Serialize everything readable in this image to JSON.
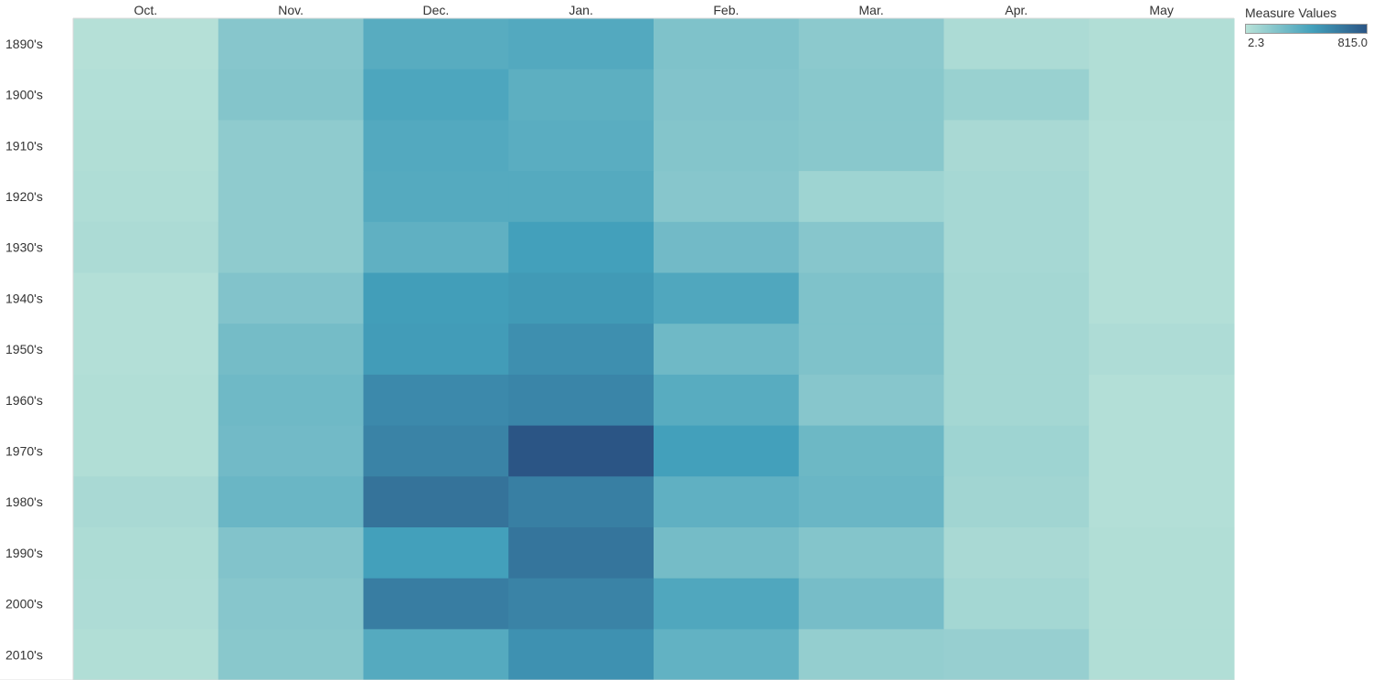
{
  "chart_data": {
    "type": "heatmap",
    "columns": [
      "Oct.",
      "Nov.",
      "Dec.",
      "Jan.",
      "Feb.",
      "Mar.",
      "Apr.",
      "May"
    ],
    "rows": [
      "1890's",
      "1900's",
      "1910's",
      "1920's",
      "1930's",
      "1940's",
      "1950's",
      "1960's",
      "1970's",
      "1980's",
      "1990's",
      "2000's",
      "2010's"
    ],
    "values": [
      [
        15,
        190,
        370,
        390,
        220,
        170,
        50,
        30
      ],
      [
        25,
        200,
        410,
        350,
        210,
        180,
        120,
        30
      ],
      [
        30,
        160,
        390,
        360,
        200,
        180,
        60,
        20
      ],
      [
        35,
        160,
        380,
        380,
        190,
        100,
        70,
        20
      ],
      [
        50,
        160,
        340,
        450,
        270,
        190,
        70,
        20
      ],
      [
        20,
        210,
        460,
        480,
        400,
        220,
        80,
        20
      ],
      [
        20,
        260,
        470,
        530,
        280,
        220,
        80,
        40
      ],
      [
        30,
        280,
        560,
        580,
        370,
        190,
        80,
        20
      ],
      [
        30,
        270,
        590,
        815,
        450,
        290,
        100,
        20
      ],
      [
        60,
        300,
        670,
        610,
        340,
        300,
        90,
        20
      ],
      [
        45,
        210,
        450,
        660,
        260,
        200,
        60,
        30
      ],
      [
        40,
        190,
        620,
        590,
        400,
        250,
        80,
        30
      ],
      [
        30,
        180,
        380,
        520,
        330,
        140,
        130,
        30
      ]
    ],
    "legend": {
      "title": "Measure Values",
      "min": 2.3,
      "max": 815.0,
      "min_label": "2.3",
      "max_label": "815.0",
      "color_low": "#b8e2d8",
      "color_mid": "#43a0bb",
      "color_high": "#2b5585"
    }
  }
}
